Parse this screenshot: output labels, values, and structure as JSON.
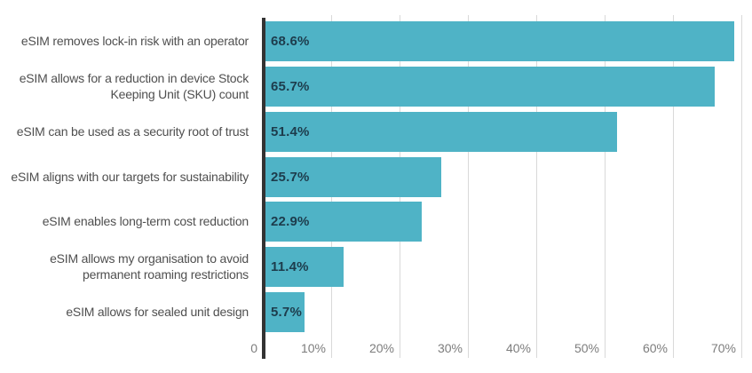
{
  "chart_data": {
    "type": "bar",
    "orientation": "horizontal",
    "title": "",
    "xlabel": "",
    "ylabel": "",
    "categories": [
      "eSIM removes lock-in risk with an operator",
      "eSIM allows for a reduction in device Stock Keeping Unit (SKU) count",
      "eSIM can be used as a security root of trust",
      "eSIM aligns with our targets for sustainability",
      "eSIM enables long-term cost reduction",
      "eSIM allows my organisation to avoid permanent roaming restrictions",
      "eSIM allows for sealed unit design"
    ],
    "values": [
      68.6,
      65.7,
      51.4,
      25.7,
      22.9,
      11.4,
      5.7
    ],
    "value_labels": [
      "68.6%",
      "65.7%",
      "51.4%",
      "25.7%",
      "22.9%",
      "11.4%",
      "5.7%"
    ],
    "xlim": [
      0,
      70
    ],
    "x_ticks": [
      0,
      10,
      20,
      30,
      40,
      50,
      60,
      70
    ],
    "x_tick_labels": [
      "0",
      "10%",
      "20%",
      "30%",
      "40%",
      "50%",
      "60%",
      "70%"
    ],
    "grid": "vertical-gridlines-on",
    "legend_position": "none"
  },
  "colors": {
    "bar": "#4fb3c6",
    "value_text": "#1d3c4c",
    "category_text": "#4f4f4f",
    "tick_text": "#7d7d7d",
    "gridline": "#d9d9d9",
    "axis_line": "#333333",
    "background": "#ffffff"
  }
}
